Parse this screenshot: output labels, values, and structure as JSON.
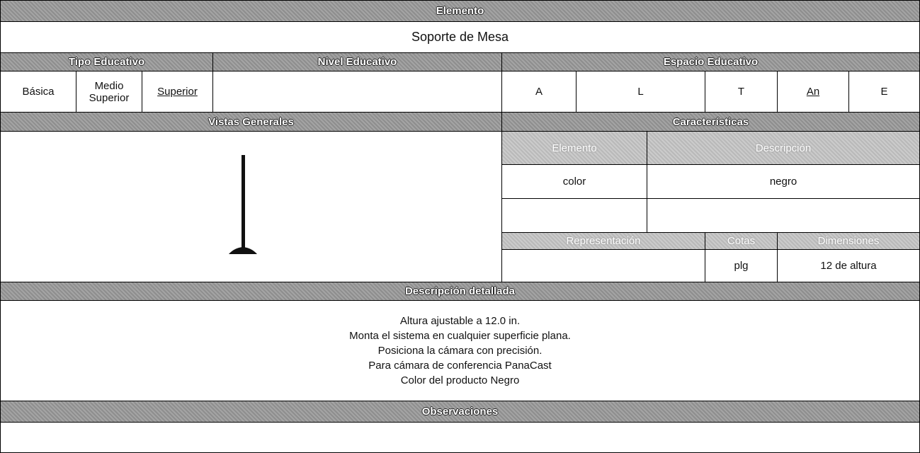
{
  "header": {
    "title": "Elemento",
    "name": "Soporte de Mesa"
  },
  "sections": {
    "tipo": "Tipo Educativo",
    "nivel": "Nivel Educativo",
    "espacio": "Espacio Educativo",
    "vistas": "Vistas Generales",
    "caracteristicas": "Características",
    "descripcion": "Descripción detallada",
    "observaciones": "Observaciones"
  },
  "tipo_options": [
    "Básica",
    "Medio Superior",
    "Superior"
  ],
  "espacio_options": [
    "A",
    "L",
    "T",
    "An",
    "E"
  ],
  "caracteristicas": {
    "headers": [
      "Elemento",
      "Descripción"
    ],
    "rows": [
      [
        "color",
        "negro"
      ]
    ],
    "sub_headers": [
      "Representación",
      "Cotas",
      "Dimensiones"
    ],
    "sub_row": [
      "plg",
      "12 de altura"
    ]
  },
  "description_lines": [
    "Altura ajustable a 12.0 in.",
    "Monta el sistema en cualquier superficie plana.",
    "Posiciona la cámara con precisión.",
    "Para cámara de conferencia PanaCast",
    "Color del producto Negro"
  ]
}
